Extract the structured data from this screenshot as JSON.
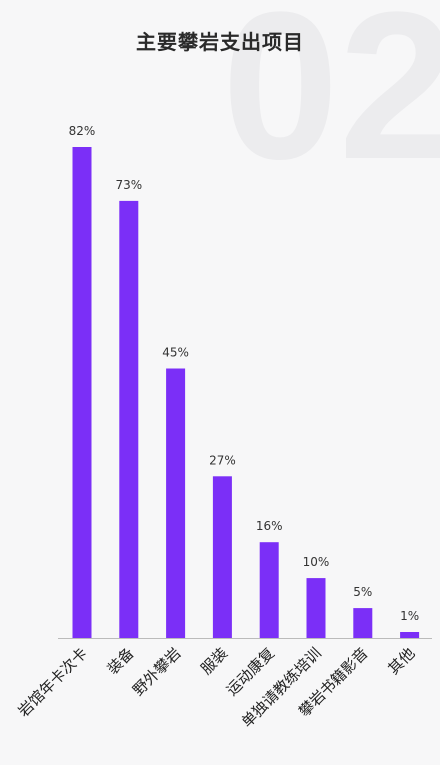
{
  "chart_data": {
    "type": "bar",
    "title": "主要攀岩支出项目",
    "watermark": "02",
    "categories": [
      "岩馆年卡次卡",
      "装备",
      "野外攀岩",
      "服装",
      "运动康复",
      "单独请教练培训",
      "攀岩书籍影音",
      "其他"
    ],
    "values": [
      82,
      73,
      45,
      27,
      16,
      10,
      5,
      1
    ],
    "value_labels": [
      "82%",
      "73%",
      "45%",
      "27%",
      "16%",
      "10%",
      "5%",
      "1%"
    ],
    "unit": "%",
    "xlabel": "",
    "ylabel": "",
    "ylim": [
      0,
      100
    ],
    "grid": false,
    "legend": "none",
    "colors": {
      "bar": "#7b2ff7",
      "text": "#333333",
      "axis": "#bbbbbb",
      "watermark": "#ececee"
    }
  }
}
